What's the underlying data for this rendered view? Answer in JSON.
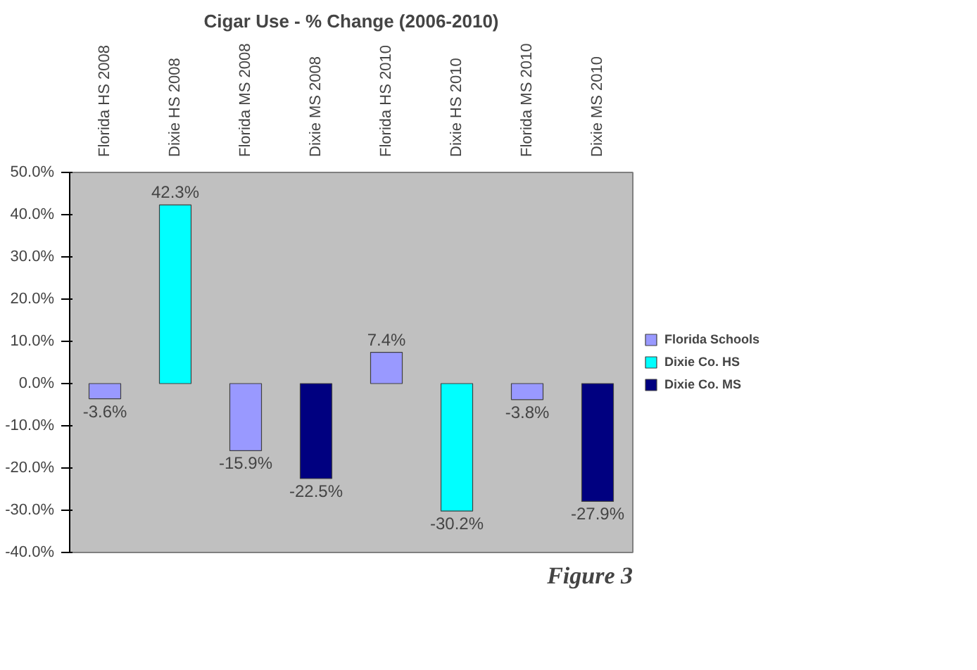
{
  "chart_data": {
    "type": "bar",
    "title": "Cigar Use - % Change (2006-2010)",
    "categories": [
      "Florida HS 2008",
      "Dixie HS 2008",
      "Florida MS 2008",
      "Dixie MS 2008",
      "Florida HS 2010",
      "Dixie HS 2010",
      "Florida MS 2010",
      "Dixie MS 2010"
    ],
    "series": [
      {
        "name": "Florida Schools",
        "color": "#9999ff",
        "values": [
          -3.6,
          null,
          -15.9,
          null,
          7.4,
          null,
          -3.8,
          null
        ],
        "value_labels": [
          "-3.6%",
          null,
          "-15.9%",
          null,
          "7.4%",
          null,
          "-3.8%",
          null
        ]
      },
      {
        "name": "Dixie Co. HS",
        "color": "#00ffff",
        "values": [
          null,
          42.3,
          null,
          null,
          null,
          -30.2,
          null,
          null
        ],
        "value_labels": [
          null,
          "42.3%",
          null,
          null,
          null,
          "-30.2%",
          null,
          null
        ]
      },
      {
        "name": "Dixie Co. MS",
        "color": "#000080",
        "values": [
          null,
          null,
          null,
          -22.5,
          null,
          null,
          null,
          -27.9
        ],
        "value_labels": [
          null,
          null,
          null,
          "-22.5%",
          null,
          null,
          null,
          "-27.9%"
        ]
      }
    ],
    "ylim": [
      -40,
      50
    ],
    "yticks": [
      {
        "value": -40,
        "label": "-40.0%"
      },
      {
        "value": -30,
        "label": "-30.0%"
      },
      {
        "value": -20,
        "label": "-20.0%"
      },
      {
        "value": -10,
        "label": "-10.0%"
      },
      {
        "value": 0,
        "label": "0.0%"
      },
      {
        "value": 10,
        "label": "10.0%"
      },
      {
        "value": 20,
        "label": "20.0%"
      },
      {
        "value": 30,
        "label": "30.0%"
      },
      {
        "value": 40,
        "label": "40.0%"
      },
      {
        "value": 50,
        "label": "50.0%"
      }
    ],
    "grid": false,
    "legend": "right",
    "annotations": [
      "Figure 3"
    ]
  }
}
